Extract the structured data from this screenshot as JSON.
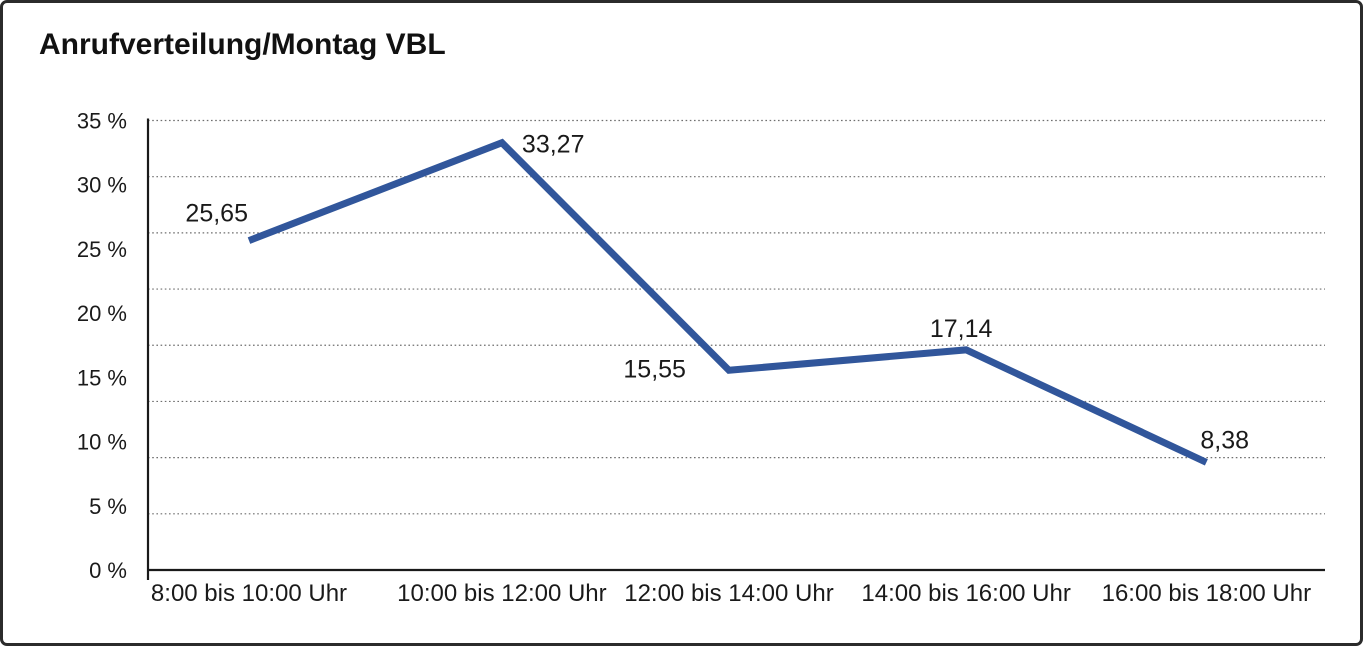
{
  "chart_data": {
    "type": "line",
    "title": "Anrufverteilung/Montag VBL",
    "categories": [
      "8:00 bis 10:00 Uhr",
      "10:00 bis 12:00 Uhr",
      "12:00 bis 14:00 Uhr",
      "14:00 bis 16:00 Uhr",
      "16:00 bis 18:00 Uhr"
    ],
    "values": [
      25.65,
      33.27,
      15.55,
      17.14,
      8.38
    ],
    "point_labels": [
      "25,65",
      "33,27",
      "15,55",
      "17,14",
      "8,38"
    ],
    "ytick_labels": [
      "0 %",
      "5 %",
      "10 %",
      "15 %",
      "20 %",
      "25 %",
      "30 %",
      "35 %"
    ],
    "ylim": [
      0,
      35
    ],
    "xlabel": "",
    "ylabel": "",
    "grid": "dotted-horizontal",
    "legend": "none",
    "line_color": "#31569B",
    "text_color": "#1a1a1a",
    "label_positions": [
      "above-left",
      "right",
      "left",
      "above",
      "above-right"
    ]
  }
}
